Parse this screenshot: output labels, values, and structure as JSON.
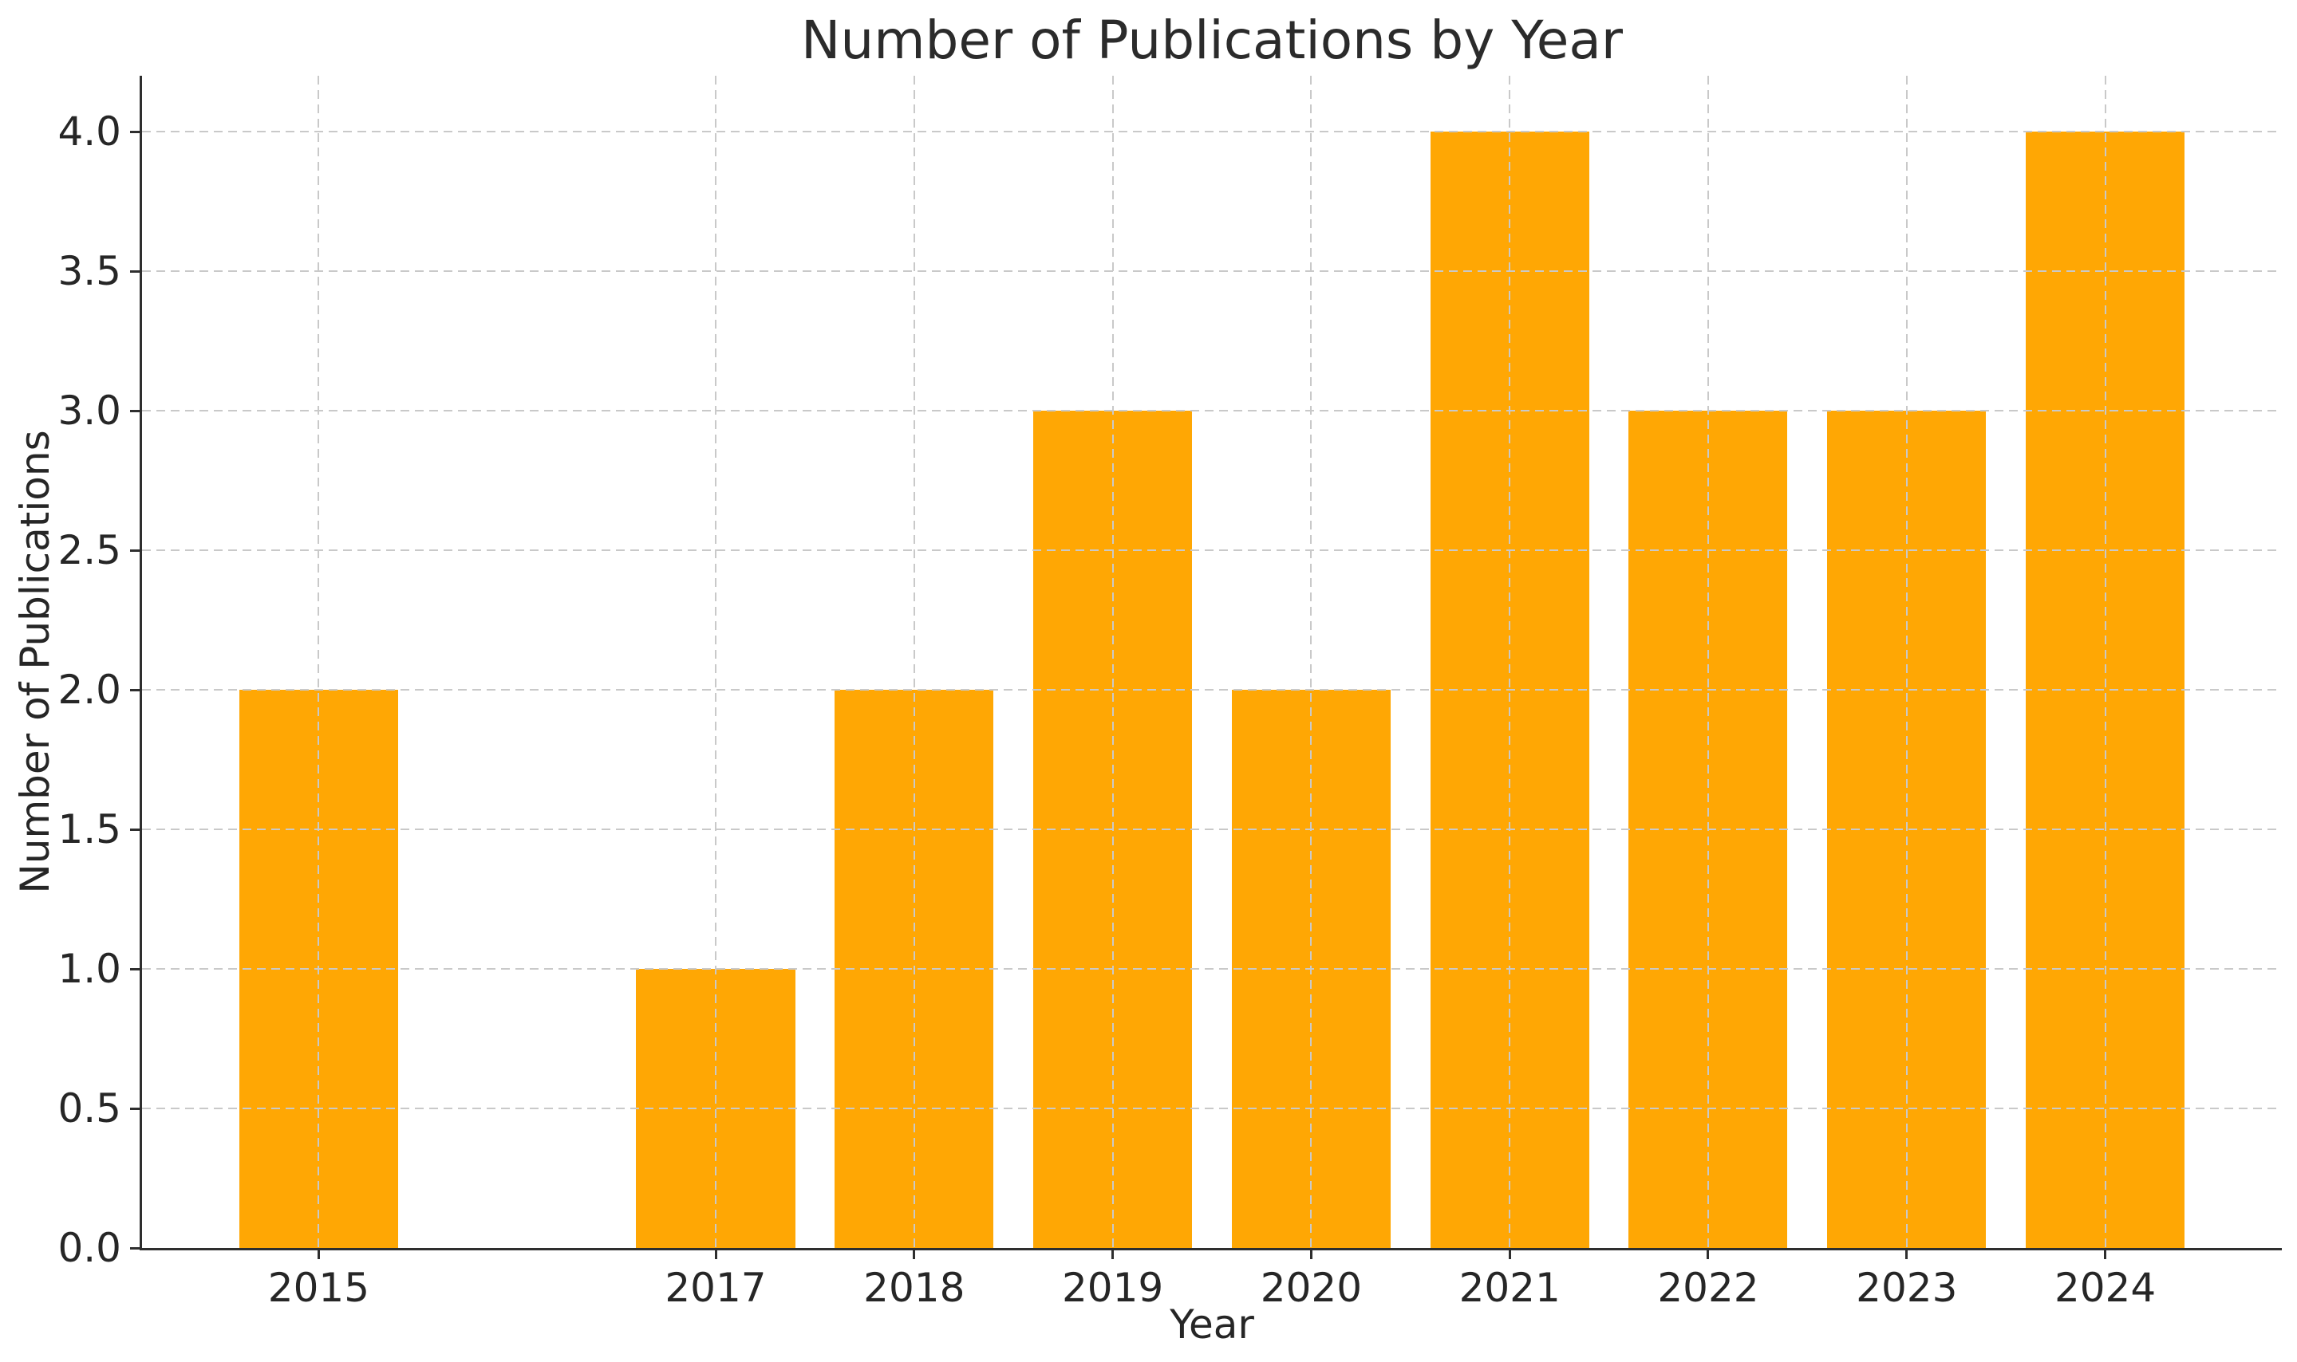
{
  "chart_data": {
    "type": "bar",
    "title": "Number of Publications by Year",
    "xlabel": "Year",
    "ylabel": "Number of Publications",
    "x": [
      2015,
      2017,
      2018,
      2019,
      2020,
      2021,
      2022,
      2023,
      2024
    ],
    "values": [
      2,
      1,
      2,
      3,
      2,
      4,
      3,
      3,
      4
    ],
    "bar_color": "#FFA704",
    "bar_width_units": 0.8,
    "xtick_labels": [
      "2015",
      "2017",
      "2018",
      "2019",
      "2020",
      "2021",
      "2022",
      "2023",
      "2024"
    ],
    "xtick_positions": [
      2015,
      2017,
      2018,
      2019,
      2020,
      2021,
      2022,
      2023,
      2024
    ],
    "ytick_labels": [
      "0.0",
      "0.5",
      "1.0",
      "1.5",
      "2.0",
      "2.5",
      "3.0",
      "3.5",
      "4.0"
    ],
    "ytick_values": [
      0,
      0.5,
      1,
      1.5,
      2,
      2.5,
      3,
      3.5,
      4
    ],
    "xlim": [
      2014.11,
      2024.89
    ],
    "ylim": [
      0,
      4.2
    ],
    "grid": true,
    "grid_style": "dashed",
    "grid_color": "#c9c9c9",
    "grid_above_bars": true,
    "spines": [
      "left",
      "bottom"
    ],
    "spine_color": "#2e2e2e",
    "text_color": "#262626",
    "background": "#ffffff"
  }
}
